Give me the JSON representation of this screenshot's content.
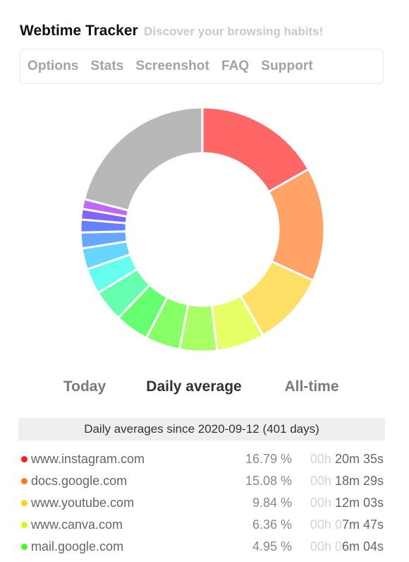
{
  "header": {
    "title": "Webtime Tracker",
    "tagline": "Discover your browsing habits!"
  },
  "nav": {
    "items": [
      "Options",
      "Stats",
      "Screenshot",
      "FAQ",
      "Support"
    ]
  },
  "tabs": [
    {
      "label": "Today",
      "active": false
    },
    {
      "label": "Daily average",
      "active": true
    },
    {
      "label": "All-time",
      "active": false
    }
  ],
  "summary": "Daily averages since 2020-09-12 (401 days)",
  "sites": [
    {
      "domain": "www.instagram.com",
      "percent": "16.79 %",
      "time_dim": "00h ",
      "time_dim2": "",
      "time_main": "20m 35s",
      "color": "#ff1e1e"
    },
    {
      "domain": "docs.google.com",
      "percent": "15.08 %",
      "time_dim": "00h ",
      "time_dim2": "",
      "time_main": "18m 29s",
      "color": "#ff7a1e"
    },
    {
      "domain": "www.youtube.com",
      "percent": "9.84 %",
      "time_dim": "00h ",
      "time_dim2": "",
      "time_main": "12m 03s",
      "color": "#ffd21e"
    },
    {
      "domain": "www.canva.com",
      "percent": "6.36 %",
      "time_dim": "00h ",
      "time_dim2": "0",
      "time_main": "7m 47s",
      "color": "#c8ff1e"
    },
    {
      "domain": "mail.google.com",
      "percent": "4.95 %",
      "time_dim": "00h ",
      "time_dim2": "0",
      "time_main": "6m 04s",
      "color": "#46ff1e"
    }
  ],
  "chart_data": {
    "type": "pie",
    "style": "donut",
    "labels": [
      "www.instagram.com",
      "docs.google.com",
      "www.youtube.com",
      "www.canva.com",
      "mail.google.com",
      "",
      "",
      "",
      "",
      "",
      "",
      "",
      "",
      "",
      ""
    ],
    "values": [
      16.79,
      15.08,
      9.84,
      6.36,
      4.95,
      4.6,
      4.5,
      4.2,
      3.4,
      2.8,
      2.1,
      1.7,
      1.4,
      1.3,
      21.0
    ],
    "colors": [
      "#ff6666",
      "#ffa366",
      "#ffe066",
      "#e6ff66",
      "#a8ff66",
      "#87ff66",
      "#66ff70",
      "#66ffb0",
      "#66ffee",
      "#66d6ff",
      "#66a8ff",
      "#6680ff",
      "#8066ff",
      "#c266ff",
      "#b8b8b8"
    ]
  }
}
